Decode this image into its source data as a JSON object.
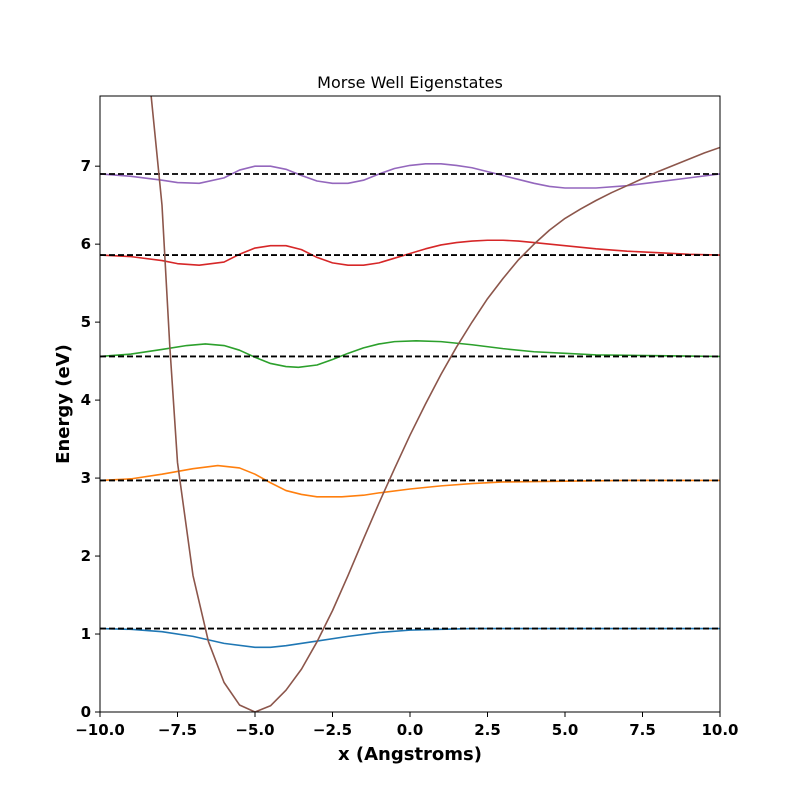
{
  "chart_data": {
    "type": "line",
    "title": "Morse Well Eigenstates",
    "xlabel": "x (Angstroms)",
    "ylabel": "Energy (eV)",
    "xlim": [
      -10,
      10
    ],
    "ylim": [
      0,
      7.9
    ],
    "grid": false,
    "x_ticks": [
      -10,
      -7.5,
      -5,
      -2.5,
      0,
      2.5,
      5,
      7.5,
      10
    ],
    "x_tick_labels": [
      "−10.0",
      "−7.5",
      "−5.0",
      "−2.5",
      "0.0",
      "2.5",
      "5.0",
      "7.5",
      "10.0"
    ],
    "y_ticks": [
      0,
      1,
      2,
      3,
      4,
      5,
      6,
      7
    ],
    "y_tick_labels": [
      "0",
      "1",
      "2",
      "3",
      "4",
      "5",
      "6",
      "7"
    ],
    "potential": {
      "color": "#8c564b",
      "points": [
        [
          -8.35,
          7.9
        ],
        [
          -8.0,
          6.5
        ],
        [
          -7.75,
          4.7
        ],
        [
          -7.5,
          3.2
        ],
        [
          -7.0,
          1.75
        ],
        [
          -6.5,
          0.9
        ],
        [
          -6.0,
          0.38
        ],
        [
          -5.5,
          0.09
        ],
        [
          -5.0,
          0.0
        ],
        [
          -4.5,
          0.08
        ],
        [
          -4.0,
          0.28
        ],
        [
          -3.5,
          0.55
        ],
        [
          -3.0,
          0.9
        ],
        [
          -2.5,
          1.3
        ],
        [
          -2.0,
          1.75
        ],
        [
          -1.5,
          2.22
        ],
        [
          -1.0,
          2.68
        ],
        [
          -0.5,
          3.12
        ],
        [
          0.0,
          3.55
        ],
        [
          0.5,
          3.95
        ],
        [
          1.0,
          4.33
        ],
        [
          1.5,
          4.68
        ],
        [
          2.0,
          5.0
        ],
        [
          2.5,
          5.3
        ],
        [
          3.0,
          5.56
        ],
        [
          3.5,
          5.8
        ],
        [
          4.0,
          6.0
        ],
        [
          4.5,
          6.18
        ],
        [
          5.0,
          6.33
        ],
        [
          5.5,
          6.45
        ],
        [
          6.0,
          6.56
        ],
        [
          6.5,
          6.66
        ],
        [
          7.0,
          6.75
        ],
        [
          7.5,
          6.84
        ],
        [
          8.0,
          6.93
        ],
        [
          8.5,
          7.01
        ],
        [
          9.0,
          7.09
        ],
        [
          9.5,
          7.17
        ],
        [
          10.0,
          7.24
        ]
      ]
    },
    "energy_levels": [
      {
        "energy": 1.07,
        "color": "#1f77b4",
        "points": [
          [
            -10,
            1.07
          ],
          [
            -9,
            1.06
          ],
          [
            -8,
            1.03
          ],
          [
            -7,
            0.97
          ],
          [
            -6,
            0.88
          ],
          [
            -5,
            0.83
          ],
          [
            -4.5,
            0.83
          ],
          [
            -4,
            0.85
          ],
          [
            -3,
            0.91
          ],
          [
            -2,
            0.97
          ],
          [
            -1,
            1.02
          ],
          [
            0,
            1.05
          ],
          [
            1,
            1.06
          ],
          [
            2,
            1.07
          ],
          [
            4,
            1.07
          ],
          [
            6,
            1.07
          ],
          [
            8,
            1.07
          ],
          [
            10,
            1.07
          ]
        ]
      },
      {
        "energy": 2.97,
        "color": "#ff7f0e",
        "points": [
          [
            -10,
            2.97
          ],
          [
            -9,
            2.99
          ],
          [
            -8,
            3.05
          ],
          [
            -7,
            3.12
          ],
          [
            -6.2,
            3.16
          ],
          [
            -5.5,
            3.13
          ],
          [
            -5,
            3.05
          ],
          [
            -4.5,
            2.94
          ],
          [
            -4,
            2.84
          ],
          [
            -3.5,
            2.79
          ],
          [
            -3,
            2.76
          ],
          [
            -2.2,
            2.76
          ],
          [
            -1.5,
            2.78
          ],
          [
            -1,
            2.81
          ],
          [
            0,
            2.86
          ],
          [
            1,
            2.9
          ],
          [
            2,
            2.93
          ],
          [
            3,
            2.95
          ],
          [
            5,
            2.96
          ],
          [
            7,
            2.97
          ],
          [
            10,
            2.97
          ]
        ]
      },
      {
        "energy": 4.56,
        "color": "#2ca02c",
        "points": [
          [
            -10,
            4.56
          ],
          [
            -9,
            4.59
          ],
          [
            -8,
            4.65
          ],
          [
            -7.2,
            4.7
          ],
          [
            -6.6,
            4.72
          ],
          [
            -6,
            4.7
          ],
          [
            -5.5,
            4.64
          ],
          [
            -5,
            4.55
          ],
          [
            -4.5,
            4.47
          ],
          [
            -4,
            4.43
          ],
          [
            -3.6,
            4.42
          ],
          [
            -3,
            4.45
          ],
          [
            -2.5,
            4.52
          ],
          [
            -2,
            4.6
          ],
          [
            -1.5,
            4.67
          ],
          [
            -1,
            4.72
          ],
          [
            -0.5,
            4.75
          ],
          [
            0.2,
            4.76
          ],
          [
            1,
            4.75
          ],
          [
            2,
            4.71
          ],
          [
            3,
            4.66
          ],
          [
            4,
            4.62
          ],
          [
            5,
            4.6
          ],
          [
            6,
            4.58
          ],
          [
            8,
            4.57
          ],
          [
            10,
            4.56
          ]
        ]
      },
      {
        "energy": 5.86,
        "color": "#d62728",
        "points": [
          [
            -10,
            5.86
          ],
          [
            -9,
            5.84
          ],
          [
            -8,
            5.79
          ],
          [
            -7.5,
            5.75
          ],
          [
            -6.8,
            5.73
          ],
          [
            -6,
            5.77
          ],
          [
            -5.5,
            5.87
          ],
          [
            -5,
            5.95
          ],
          [
            -4.5,
            5.98
          ],
          [
            -4,
            5.98
          ],
          [
            -3.5,
            5.93
          ],
          [
            -3,
            5.83
          ],
          [
            -2.5,
            5.76
          ],
          [
            -2,
            5.73
          ],
          [
            -1.5,
            5.73
          ],
          [
            -1,
            5.76
          ],
          [
            -0.5,
            5.82
          ],
          [
            0,
            5.88
          ],
          [
            0.5,
            5.94
          ],
          [
            1,
            5.99
          ],
          [
            1.5,
            6.02
          ],
          [
            2,
            6.04
          ],
          [
            2.5,
            6.05
          ],
          [
            3,
            6.05
          ],
          [
            3.5,
            6.04
          ],
          [
            4,
            6.02
          ],
          [
            5,
            5.98
          ],
          [
            6,
            5.94
          ],
          [
            7,
            5.91
          ],
          [
            8,
            5.89
          ],
          [
            9,
            5.87
          ],
          [
            10,
            5.86
          ]
        ]
      },
      {
        "energy": 6.9,
        "color": "#9467bd",
        "points": [
          [
            -10,
            6.9
          ],
          [
            -9,
            6.87
          ],
          [
            -8,
            6.82
          ],
          [
            -7.5,
            6.79
          ],
          [
            -6.8,
            6.78
          ],
          [
            -6,
            6.85
          ],
          [
            -5.5,
            6.95
          ],
          [
            -5,
            7.0
          ],
          [
            -4.5,
            7.0
          ],
          [
            -4,
            6.96
          ],
          [
            -3.5,
            6.88
          ],
          [
            -3,
            6.81
          ],
          [
            -2.5,
            6.78
          ],
          [
            -2,
            6.78
          ],
          [
            -1.5,
            6.82
          ],
          [
            -1,
            6.9
          ],
          [
            -0.5,
            6.97
          ],
          [
            0,
            7.01
          ],
          [
            0.5,
            7.03
          ],
          [
            1,
            7.03
          ],
          [
            1.5,
            7.01
          ],
          [
            2,
            6.98
          ],
          [
            2.5,
            6.93
          ],
          [
            3,
            6.88
          ],
          [
            3.5,
            6.83
          ],
          [
            4,
            6.78
          ],
          [
            4.5,
            6.74
          ],
          [
            5,
            6.72
          ],
          [
            5.5,
            6.72
          ],
          [
            6,
            6.72
          ],
          [
            7,
            6.75
          ],
          [
            8,
            6.8
          ],
          [
            9,
            6.85
          ],
          [
            10,
            6.9
          ]
        ]
      }
    ]
  }
}
